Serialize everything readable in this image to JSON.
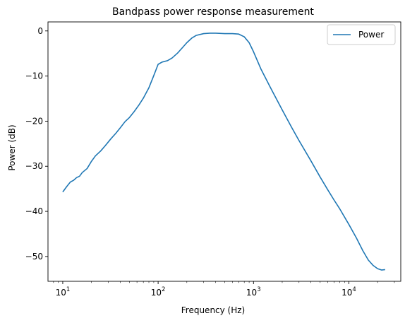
{
  "chart_data": {
    "type": "line",
    "title": "Bandpass power response measurement",
    "xlabel": "Frequency (Hz)",
    "ylabel": "Power (dB)",
    "xscale": "log",
    "xlim": [
      7,
      35000
    ],
    "ylim": [
      -55.5,
      2
    ],
    "x_ticks": [
      {
        "value": 10,
        "base": "10",
        "exp": "1"
      },
      {
        "value": 100,
        "base": "10",
        "exp": "2"
      },
      {
        "value": 1000,
        "base": "10",
        "exp": "3"
      },
      {
        "value": 10000,
        "base": "10",
        "exp": "4"
      }
    ],
    "y_ticks": [
      {
        "value": 0,
        "label": "0"
      },
      {
        "value": -10,
        "label": "−10"
      },
      {
        "value": -20,
        "label": "−20"
      },
      {
        "value": -30,
        "label": "−30"
      },
      {
        "value": -40,
        "label": "−40"
      },
      {
        "value": -50,
        "label": "−50"
      }
    ],
    "grid": false,
    "legend_position": "top-right",
    "series": [
      {
        "name": "Power",
        "color": "#1f77b4",
        "points": [
          [
            10,
            -35.7
          ],
          [
            11,
            -34.5
          ],
          [
            12,
            -33.5
          ],
          [
            13,
            -33.1
          ],
          [
            14,
            -32.5
          ],
          [
            15,
            -32.2
          ],
          [
            16,
            -31.4
          ],
          [
            18,
            -30.5
          ],
          [
            20,
            -28.9
          ],
          [
            22,
            -27.7
          ],
          [
            25,
            -26.6
          ],
          [
            28,
            -25.4
          ],
          [
            32,
            -23.9
          ],
          [
            36,
            -22.7
          ],
          [
            40,
            -21.5
          ],
          [
            45,
            -20.1
          ],
          [
            50,
            -19.2
          ],
          [
            56,
            -17.9
          ],
          [
            63,
            -16.4
          ],
          [
            70,
            -14.9
          ],
          [
            80,
            -12.6
          ],
          [
            90,
            -9.9
          ],
          [
            100,
            -7.4
          ],
          [
            110,
            -6.9
          ],
          [
            125,
            -6.6
          ],
          [
            140,
            -6.0
          ],
          [
            160,
            -4.9
          ],
          [
            180,
            -3.7
          ],
          [
            200,
            -2.6
          ],
          [
            225,
            -1.6
          ],
          [
            250,
            -1.0
          ],
          [
            300,
            -0.6
          ],
          [
            350,
            -0.5
          ],
          [
            400,
            -0.5
          ],
          [
            500,
            -0.6
          ],
          [
            600,
            -0.6
          ],
          [
            700,
            -0.7
          ],
          [
            800,
            -1.3
          ],
          [
            900,
            -2.6
          ],
          [
            1000,
            -4.6
          ],
          [
            1200,
            -8.5
          ],
          [
            1500,
            -12.5
          ],
          [
            2000,
            -17.5
          ],
          [
            2500,
            -21.3
          ],
          [
            3000,
            -24.3
          ],
          [
            4000,
            -28.8
          ],
          [
            5000,
            -32.4
          ],
          [
            6000,
            -35.2
          ],
          [
            7000,
            -37.5
          ],
          [
            8000,
            -39.4
          ],
          [
            10000,
            -42.9
          ],
          [
            12000,
            -45.9
          ],
          [
            14000,
            -48.7
          ],
          [
            16000,
            -50.8
          ],
          [
            18000,
            -52.0
          ],
          [
            20000,
            -52.7
          ],
          [
            22000,
            -53.0
          ],
          [
            24000,
            -52.9
          ]
        ]
      }
    ]
  }
}
